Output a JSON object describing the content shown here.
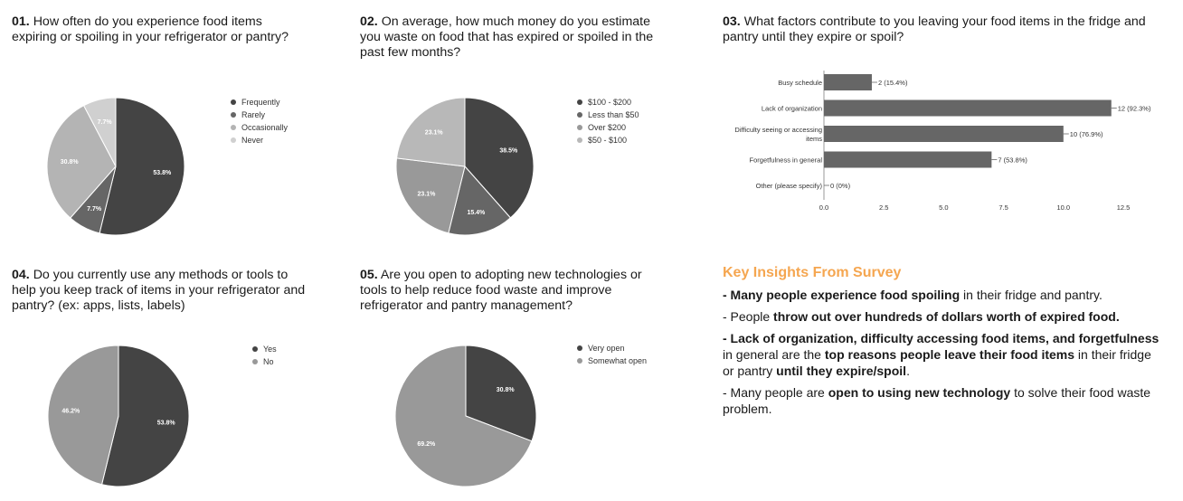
{
  "colors": {
    "c1": "#444444",
    "c2": "#666666",
    "c3": "#b4b4b4",
    "c4": "#d0d0d0",
    "bar": "#666666",
    "accent": "#f5a650"
  },
  "q1": {
    "num": "01.",
    "text": "How often do you experience food items expiring or spoiling in your refrigerator or pantry?"
  },
  "q2": {
    "num": "02.",
    "text": "On average, how much money do you estimate you waste on food that has expired or spoiled in the past few months?"
  },
  "q3": {
    "num": "03.",
    "text": "What factors contribute to you leaving your food items in the fridge and pantry until they expire or spoil?"
  },
  "q4": {
    "num": "04.",
    "text": "Do you currently use any methods or tools to help you keep track of items in your refrigerator and pantry? (ex: apps, lists, labels)"
  },
  "q5": {
    "num": "05.",
    "text": "Are you open to adopting new technologies or tools to help reduce food waste and improve refrigerator and pantry management?"
  },
  "chart_data": [
    {
      "type": "pie",
      "labels": [
        "Frequently",
        "Rarely",
        "Occasionally",
        "Never"
      ],
      "values": [
        53.8,
        7.7,
        30.8,
        7.7
      ],
      "value_labels": [
        "53.8%",
        "7.7%",
        "30.8%",
        "7.7%"
      ],
      "colors": [
        "#444444",
        "#666666",
        "#b4b4b4",
        "#d0d0d0"
      ],
      "legend": "right"
    },
    {
      "type": "pie",
      "labels": [
        "$100 - $200",
        "Less than $50",
        "Over $200",
        "$50 - $100"
      ],
      "values": [
        38.5,
        15.4,
        23.1,
        23.1
      ],
      "value_labels": [
        "38.5%",
        "15.4%",
        "23.1%",
        "23.1%"
      ],
      "colors": [
        "#444444",
        "#666666",
        "#999999",
        "#b8b8b8"
      ],
      "legend": "right"
    },
    {
      "type": "bar",
      "orientation": "horizontal",
      "categories": [
        "Busy schedule",
        "Lack of organization",
        "Difficulty seeing or accessing items",
        "Forgetfulness in general",
        "Other (please specify)"
      ],
      "values": [
        2,
        12,
        10,
        7,
        0
      ],
      "data_labels": [
        "2 (15.4%)",
        "12 (92.3%)",
        "10 (76.9%)",
        "7 (53.8%)",
        "0 (0%)"
      ],
      "xlim": [
        0,
        12.5
      ],
      "xticks": [
        "0.0",
        "2.5",
        "5.0",
        "7.5",
        "10.0",
        "12.5"
      ],
      "grid": false
    },
    {
      "type": "pie",
      "labels": [
        "Yes",
        "No"
      ],
      "values": [
        53.8,
        46.2
      ],
      "value_labels": [
        "53.8%",
        "46.2%"
      ],
      "colors": [
        "#444444",
        "#999999"
      ],
      "legend": "right"
    },
    {
      "type": "pie",
      "labels": [
        "Very open",
        "Somewhat open"
      ],
      "values": [
        30.8,
        69.2
      ],
      "value_labels": [
        "30.8%",
        "69.2%"
      ],
      "colors": [
        "#444444",
        "#999999"
      ],
      "legend": "right"
    }
  ],
  "insights": {
    "title": "Key Insights From Survey",
    "i1_b": "- Many people experience food spoiling",
    "i1_t": " in their fridge and pantry.",
    "i2_a": " - People ",
    "i2_b": "throw out over hundreds of dollars worth of expired food.",
    "i3_b": " - Lack of organization, difficulty accessing food items, and forgetfulness",
    "i3_t1": " in general are the ",
    "i3_b2": "top reasons people leave their food items",
    "i3_t2": " in their fridge or pantry ",
    "i3_b3": "until they expire/spoil",
    "i3_t3": ".",
    "i4_a": " - Many people are ",
    "i4_b": "open to using new technology",
    "i4_t": " to solve their food waste problem."
  }
}
